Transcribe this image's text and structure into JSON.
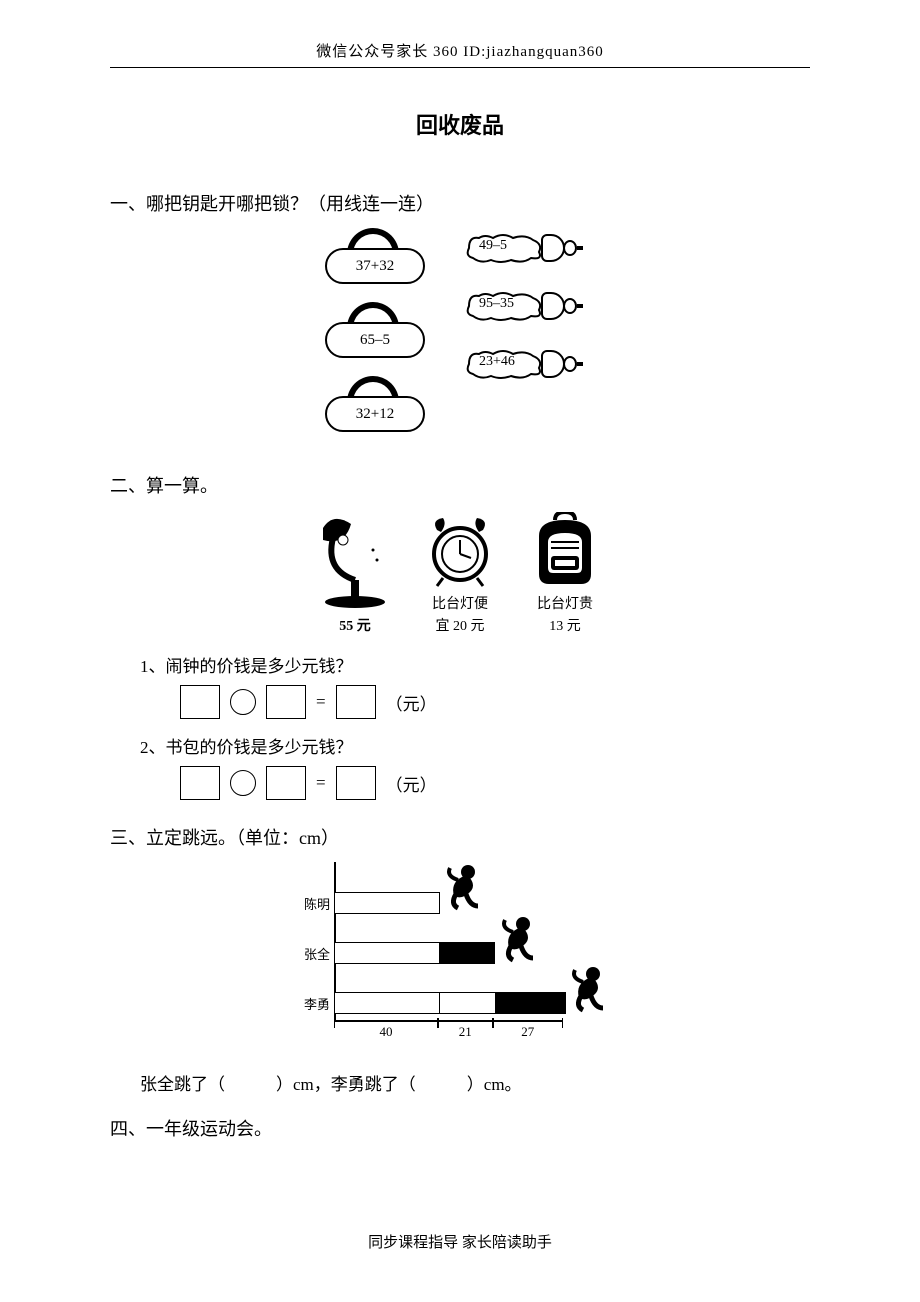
{
  "header": "微信公众号家长 360 ID:jiazhangquan360",
  "title": "回收废品",
  "footer": "同步课程指导  家长陪读助手",
  "q1": {
    "heading": "一、哪把钥匙开哪把锁？（用线连一连）",
    "locks": [
      "37+32",
      "65–5",
      "32+12"
    ],
    "keys": [
      "49–5",
      "95–35",
      "23+46"
    ]
  },
  "q2": {
    "heading": "二、算一算。",
    "lamp_price": "55 元",
    "clock_line1": "比台灯便",
    "clock_line2": "宜 20 元",
    "bag_line1": "比台灯贵",
    "bag_line2": "13 元",
    "sub1": "1、闹钟的价钱是多少元钱？",
    "sub2": "2、书包的价钱是多少元钱？",
    "unit": "（元）"
  },
  "q3": {
    "heading": "三、立定跳远。（单位：cm）",
    "names": {
      "a": "陈明",
      "b": "张全",
      "c": "李勇"
    },
    "segs": {
      "s1": 40,
      "s2": 21,
      "s3": 27
    },
    "scale": 2.6,
    "answer_template": "张全跳了（　　　）cm，李勇跳了（　　　）cm。"
  },
  "q4": {
    "heading": "四、一年级运动会。"
  },
  "colors": {
    "fg": "#000000",
    "bg": "#ffffff"
  }
}
